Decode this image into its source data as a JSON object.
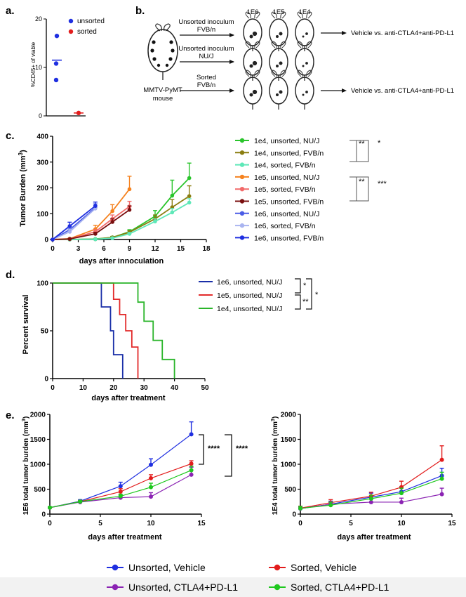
{
  "panel_labels": {
    "a": "a.",
    "b": "b.",
    "c": "c.",
    "d": "d.",
    "e": "e."
  },
  "colors": {
    "blue": "#1f2fe0",
    "red": "#e21c1c",
    "green_bright": "#29c42b",
    "olive": "#8a7d10",
    "aqua": "#5ee8b8",
    "orange": "#f5821f",
    "salmon": "#f26a6a",
    "maroon": "#7a0f0f",
    "royal": "#4a5ce6",
    "lavender": "#a9b4f0",
    "navy": "#1a2fa8",
    "purple": "#8b23b3",
    "green_e": "#1ec81e",
    "survival_red": "#e22a2a",
    "survival_green": "#2ab52a"
  },
  "panel_b": {
    "col_labels": [
      "1E6",
      "1E5",
      "1E4"
    ],
    "rows": [
      {
        "label_line1": "Unsorted inoculum",
        "label_line2": "FVB/n",
        "outcome": "Vehicle vs. anti-CTLA4+anti-PD-L1"
      },
      {
        "label_line1": "Unsorted inoculum",
        "label_line2": "NU/J",
        "outcome": ""
      },
      {
        "label_line1": "Sorted",
        "label_line2": "FVB/n",
        "outcome": "Vehicle vs. anti-CTLA4+anti-PD-L1"
      }
    ],
    "donor_line1": "MMTV-PyMT",
    "donor_line2": "mouse"
  },
  "chart_data": [
    {
      "id": "a",
      "type": "scatter",
      "ylabel": "%CD45+ of viable",
      "ylim": [
        0,
        20
      ],
      "yticks": [
        0,
        10,
        20
      ],
      "series": [
        {
          "name": "unsorted",
          "color": "#1f2fe0",
          "points": [
            16.5,
            10.8,
            7.4
          ],
          "mean": 11.5
        },
        {
          "name": "sorted",
          "color": "#e21c1c",
          "points": [
            0.6
          ],
          "mean": 0.6
        }
      ]
    },
    {
      "id": "c",
      "type": "line",
      "xlabel": "days after innoculation",
      "ylabel": "Tumor Burden (mm3)",
      "ylabel_main": "Tumor Burden (mm",
      "ylabel_sup": "3",
      "ylabel_end": ")",
      "xlim": [
        0,
        18
      ],
      "ylim": [
        0,
        400
      ],
      "xticks": [
        0,
        3,
        6,
        9,
        12,
        15,
        18
      ],
      "yticks": [
        0,
        100,
        200,
        300,
        400
      ],
      "series": [
        {
          "name": "1e4, unsorted, NU/J",
          "color": "#29c42b",
          "x": [
            0,
            2,
            5,
            7,
            9,
            12,
            14,
            16
          ],
          "y": [
            0,
            0,
            2,
            8,
            30,
            90,
            170,
            238
          ],
          "err": [
            0,
            0,
            1,
            4,
            8,
            22,
            60,
            58
          ]
        },
        {
          "name": "1e4, unsorted, FVB/n",
          "color": "#8a7d10",
          "x": [
            0,
            2,
            5,
            7,
            9,
            12,
            14,
            16
          ],
          "y": [
            0,
            0,
            1,
            8,
            28,
            80,
            125,
            168
          ],
          "err": [
            0,
            0,
            1,
            3,
            6,
            15,
            30,
            40
          ]
        },
        {
          "name": "1e4, sorted, FVB/n",
          "color": "#5ee8b8",
          "x": [
            0,
            2,
            5,
            7,
            9,
            12,
            14,
            16
          ],
          "y": [
            0,
            0,
            1,
            5,
            22,
            70,
            105,
            143
          ],
          "err": [
            0,
            0,
            1,
            2,
            5,
            10,
            15,
            15
          ]
        },
        {
          "name": "1e5, unsorted, NU/J",
          "color": "#f5821f",
          "x": [
            0,
            2,
            5,
            7,
            9
          ],
          "y": [
            0,
            3,
            40,
            110,
            195
          ],
          "err": [
            0,
            2,
            15,
            25,
            50
          ]
        },
        {
          "name": "1e5, sorted, FVB/n",
          "color": "#f26a6a",
          "x": [
            0,
            2,
            5,
            7,
            9
          ],
          "y": [
            0,
            2,
            30,
            80,
            128
          ],
          "err": [
            0,
            1,
            8,
            15,
            20
          ]
        },
        {
          "name": "1e5, unsorted, FVB/n",
          "color": "#7a0f0f",
          "x": [
            0,
            2,
            5,
            7,
            9
          ],
          "y": [
            0,
            2,
            22,
            68,
            115
          ],
          "err": [
            0,
            1,
            6,
            12,
            15
          ]
        },
        {
          "name": "1e6, unsorted, NU/J",
          "color": "#4a5ce6",
          "x": [
            0,
            2,
            5
          ],
          "y": [
            0,
            38,
            123
          ],
          "err": [
            0,
            12,
            15
          ]
        },
        {
          "name": "1e6, sorted, FVB/n",
          "color": "#a9b4f0",
          "x": [
            0,
            2,
            5
          ],
          "y": [
            0,
            30,
            120
          ],
          "err": [
            0,
            10,
            12
          ]
        },
        {
          "name": "1e6, unsorted, FVB/n",
          "color": "#1f2fe0",
          "x": [
            0,
            2,
            5
          ],
          "y": [
            0,
            52,
            130
          ],
          "err": [
            0,
            15,
            15
          ]
        }
      ],
      "significance": [
        {
          "label": "**",
          "between": [
            "1e4, unsorted, NU/J",
            "1e4, unsorted, FVB/n"
          ]
        },
        {
          "label": "*",
          "between": [
            "1e4, unsorted, NU/J",
            "1e4, sorted, FVB/n"
          ]
        },
        {
          "label": "**",
          "between": [
            "1e5, unsorted, NU/J",
            "1e5, sorted, FVB/n"
          ]
        },
        {
          "label": "***",
          "between": [
            "1e5, unsorted, NU/J",
            "1e5, unsorted, FVB/n"
          ]
        }
      ]
    },
    {
      "id": "d",
      "type": "line",
      "subtype": "survival",
      "xlabel": "days after treatment",
      "ylabel": "Percent survival",
      "xlim": [
        0,
        50
      ],
      "ylim": [
        0,
        100
      ],
      "xticks": [
        0,
        10,
        20,
        30,
        40,
        50
      ],
      "yticks": [
        0,
        50,
        100
      ],
      "series": [
        {
          "name": "1e6, unsorted, NU/J",
          "color": "#1a2fa8",
          "x": [
            0,
            16,
            16,
            19,
            19,
            20,
            20,
            23,
            23
          ],
          "y": [
            100,
            100,
            75,
            75,
            50,
            50,
            25,
            25,
            0
          ]
        },
        {
          "name": "1e5, unsorted, NU/J",
          "color": "#e22a2a",
          "x": [
            0,
            20,
            20,
            22,
            22,
            24,
            24,
            26,
            26,
            28,
            28
          ],
          "y": [
            100,
            100,
            83,
            83,
            67,
            67,
            50,
            50,
            33,
            33,
            0
          ]
        },
        {
          "name": "1e4, unsorted, NU/J",
          "color": "#2ab52a",
          "x": [
            0,
            28,
            28,
            30,
            30,
            33,
            33,
            36,
            36,
            40,
            40
          ],
          "y": [
            100,
            100,
            80,
            80,
            60,
            60,
            40,
            40,
            20,
            20,
            0
          ]
        }
      ],
      "significance": [
        {
          "label": "*",
          "between": [
            "1e6, unsorted, NU/J",
            "1e5, unsorted, NU/J"
          ]
        },
        {
          "label": "**",
          "between": [
            "1e5, unsorted, NU/J",
            "1e4, unsorted, NU/J"
          ]
        },
        {
          "label": "*",
          "between": [
            "1e6, unsorted, NU/J",
            "1e4, unsorted, NU/J"
          ]
        }
      ]
    },
    {
      "id": "e_left",
      "type": "line",
      "xlabel": "days after treatment",
      "ylabel_main": "1E6 total tumor burden (mm",
      "ylabel_sup": "3",
      "ylabel_end": ")",
      "xlim": [
        0,
        15
      ],
      "ylim": [
        0,
        2000
      ],
      "xticks": [
        0,
        5,
        10,
        15
      ],
      "yticks": [
        0,
        500,
        1000,
        1500,
        2000
      ],
      "series": [
        {
          "name": "Unsorted, Vehicle",
          "color": "#1f2fe0",
          "x": [
            0,
            3,
            7,
            10,
            14
          ],
          "y": [
            130,
            260,
            560,
            990,
            1600
          ],
          "err": [
            15,
            30,
            80,
            120,
            250
          ]
        },
        {
          "name": "Sorted, Vehicle",
          "color": "#e21c1c",
          "x": [
            0,
            3,
            7,
            10,
            14
          ],
          "y": [
            130,
            250,
            450,
            720,
            1010
          ],
          "err": [
            15,
            25,
            60,
            70,
            60
          ]
        },
        {
          "name": "Unsorted, CTLA4+PD-L1",
          "color": "#8b23b3",
          "x": [
            0,
            3,
            7,
            10,
            14
          ],
          "y": [
            130,
            240,
            330,
            350,
            790
          ],
          "err": [
            15,
            25,
            50,
            80,
            150
          ]
        },
        {
          "name": "Sorted, CTLA4+PD-L1",
          "color": "#1ec81e",
          "x": [
            0,
            3,
            7,
            10,
            14
          ],
          "y": [
            130,
            250,
            360,
            540,
            880
          ],
          "err": [
            15,
            25,
            40,
            80,
            80
          ]
        }
      ],
      "significance": [
        {
          "label": "****",
          "between": [
            "Unsorted, Vehicle",
            "Sorted, Vehicle"
          ]
        },
        {
          "label": "****",
          "between": [
            "Unsorted, Vehicle",
            "Unsorted, CTLA4+PD-L1"
          ]
        }
      ]
    },
    {
      "id": "e_right",
      "type": "line",
      "xlabel": "days after treatment",
      "ylabel_main": "1E4 total tumor burden (mm",
      "ylabel_sup": "3",
      "ylabel_end": ")",
      "xlim": [
        0,
        15
      ],
      "ylim": [
        0,
        2000
      ],
      "xticks": [
        0,
        5,
        10,
        15
      ],
      "yticks": [
        0,
        500,
        1000,
        1500,
        2000
      ],
      "series": [
        {
          "name": "Unsorted, Vehicle",
          "color": "#1f2fe0",
          "x": [
            0,
            3,
            7,
            10,
            14
          ],
          "y": [
            110,
            200,
            340,
            450,
            770
          ],
          "err": [
            40,
            60,
            80,
            100,
            150
          ]
        },
        {
          "name": "Sorted, Vehicle",
          "color": "#e21c1c",
          "x": [
            0,
            3,
            7,
            10,
            14
          ],
          "y": [
            120,
            230,
            360,
            540,
            1090
          ],
          "err": [
            40,
            60,
            80,
            120,
            280
          ]
        },
        {
          "name": "Unsorted, CTLA4+PD-L1",
          "color": "#8b23b3",
          "x": [
            0,
            3,
            7,
            10,
            14
          ],
          "y": [
            110,
            200,
            240,
            240,
            400
          ],
          "err": [
            30,
            50,
            60,
            80,
            120
          ]
        },
        {
          "name": "Sorted, CTLA4+PD-L1",
          "color": "#1ec81e",
          "x": [
            0,
            3,
            7,
            10,
            14
          ],
          "y": [
            115,
            180,
            310,
            420,
            710
          ],
          "err": [
            40,
            60,
            70,
            100,
            130
          ]
        }
      ]
    }
  ],
  "legend_e": [
    {
      "name": "Unsorted, Vehicle",
      "color": "#1f2fe0"
    },
    {
      "name": "Sorted, Vehicle",
      "color": "#e21c1c"
    },
    {
      "name": "Unsorted, CTLA4+PD-L1",
      "color": "#8b23b3"
    },
    {
      "name": "Sorted, CTLA4+PD-L1",
      "color": "#1ec81e"
    }
  ]
}
